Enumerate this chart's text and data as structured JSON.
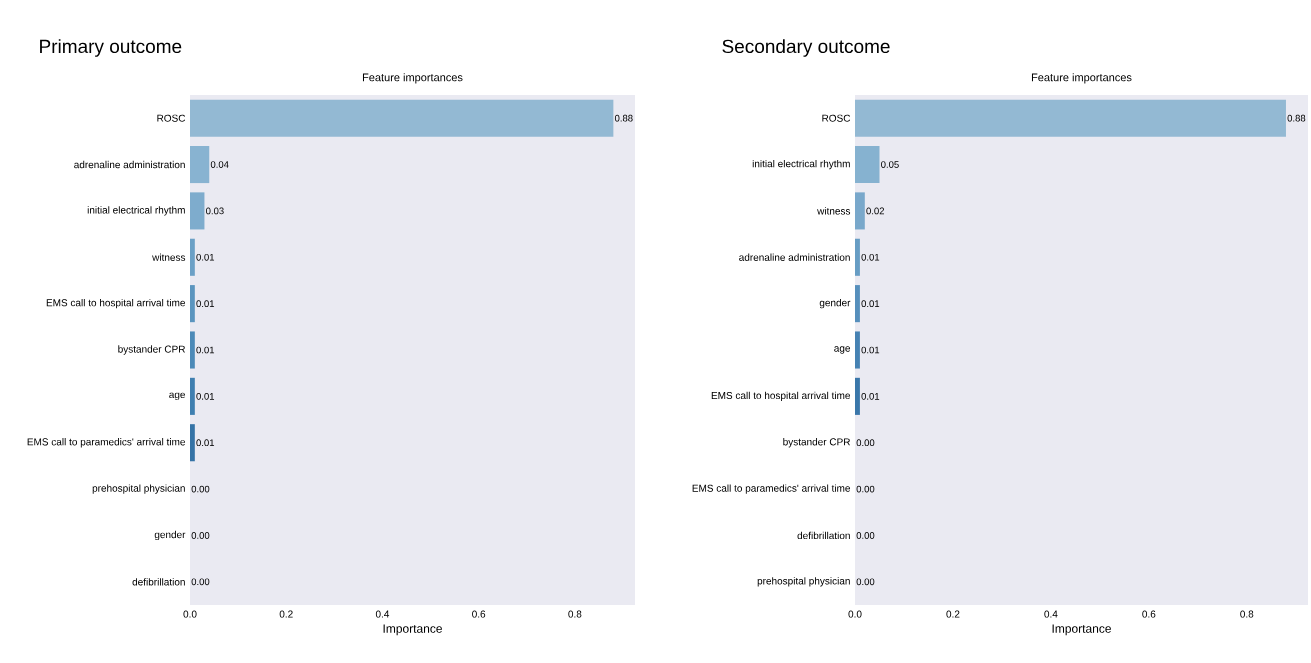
{
  "chart_data": [
    {
      "type": "bar",
      "orientation": "horizontal",
      "title": "Primary outcome",
      "subtitle": "Feature importances",
      "xlabel": "Importance",
      "categories": [
        "ROSC",
        "adrenaline administration",
        "initial electrical rhythm",
        "witness",
        "EMS call to hospital arrival time",
        "bystander CPR",
        "age",
        "EMS call to paramedics' arrival time",
        "prehospital physician",
        "gender",
        "defibrillation"
      ],
      "values": [
        0.88,
        0.04,
        0.03,
        0.01,
        0.01,
        0.01,
        0.01,
        0.01,
        0.0,
        0.0,
        0.0
      ],
      "value_labels": [
        "0.88",
        "0.04",
        "0.03",
        "0.01",
        "0.01",
        "0.01",
        "0.01",
        "0.01",
        "0.00",
        "0.00",
        "0.00"
      ],
      "colors": [
        "#93b9d3",
        "#88b3d1",
        "#7eaccd",
        "#6ba0c6",
        "#5b95bf",
        "#4c8ab8",
        "#3f7fb0",
        "#3573a6",
        "#2d6899",
        "#275d8b",
        "#22527d"
      ],
      "xlim": [
        0,
        0.925
      ],
      "xticks": [
        {
          "value": 0,
          "label": "0.0"
        },
        {
          "value": 0.2,
          "label": "0.2"
        },
        {
          "value": 0.4,
          "label": "0.4"
        },
        {
          "value": 0.6,
          "label": "0.6"
        },
        {
          "value": 0.8,
          "label": "0.8"
        }
      ]
    },
    {
      "type": "bar",
      "orientation": "horizontal",
      "title": "Secondary outcome",
      "subtitle": "Feature importances",
      "xlabel": "Importance",
      "categories": [
        "ROSC",
        "initial electrical rhythm",
        "witness",
        "adrenaline administration",
        "gender",
        "age",
        "EMS call to hospital arrival time",
        "bystander CPR",
        "EMS call to paramedics' arrival time",
        "defibrillation",
        "prehospital physician"
      ],
      "values": [
        0.88,
        0.05,
        0.02,
        0.01,
        0.01,
        0.01,
        0.01,
        0.0,
        0.0,
        0.0,
        0.0
      ],
      "value_labels": [
        "0.88",
        "0.05",
        "0.02",
        "0.01",
        "0.01",
        "0.01",
        "0.01",
        "0.00",
        "0.00",
        "0.00",
        "0.00"
      ],
      "colors": [
        "#93b9d3",
        "#86b2d0",
        "#79a8cb",
        "#679dc4",
        "#568fbc",
        "#4682b3",
        "#3a77aa",
        "#316b9d",
        "#2a608f",
        "#235480",
        "#1f4c77"
      ],
      "xlim": [
        0,
        0.925
      ],
      "xticks": [
        {
          "value": 0,
          "label": "0.0"
        },
        {
          "value": 0.2,
          "label": "0.2"
        },
        {
          "value": 0.4,
          "label": "0.4"
        },
        {
          "value": 0.6,
          "label": "0.6"
        },
        {
          "value": 0.8,
          "label": "0.8"
        }
      ]
    }
  ]
}
